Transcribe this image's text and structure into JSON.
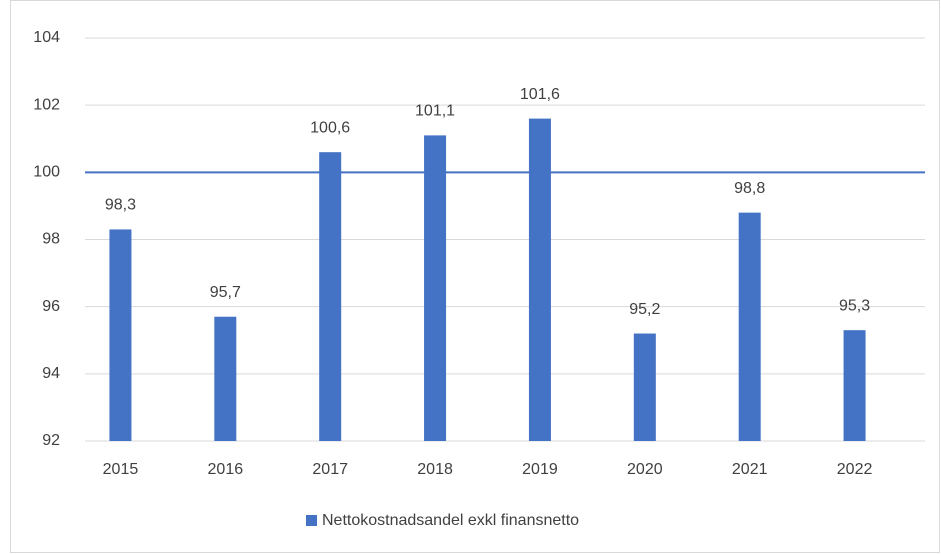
{
  "chart_data": {
    "type": "bar",
    "categories": [
      "2015",
      "2016",
      "2017",
      "2018",
      "2019",
      "2020",
      "2021",
      "2022"
    ],
    "series": [
      {
        "name": "Nettokostnadsandel exkl finansnetto",
        "color": "#4472c4",
        "values": [
          98.3,
          95.7,
          100.6,
          101.1,
          101.6,
          95.2,
          98.8,
          95.3
        ],
        "value_labels": [
          "98,3",
          "95,7",
          "100,6",
          "101,1",
          "101,6",
          "95,2",
          "98,8",
          "95,3"
        ]
      }
    ],
    "ylim": [
      92,
      104
    ],
    "yticks": [
      92,
      94,
      96,
      98,
      100,
      102,
      104
    ],
    "grid": true,
    "reference_line": {
      "value": 100,
      "color": "#4472c4"
    },
    "legend": "bottom"
  }
}
